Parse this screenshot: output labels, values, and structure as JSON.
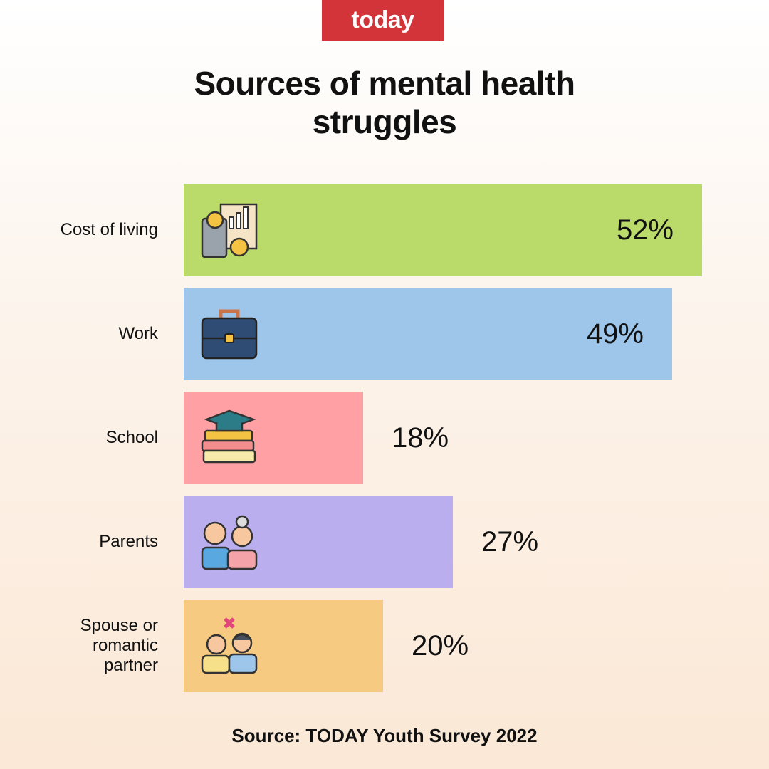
{
  "brand": "today",
  "chart_data": {
    "type": "bar",
    "orientation": "horizontal",
    "title": "Sources of mental health struggles",
    "categories": [
      "Cost of living",
      "Work",
      "School",
      "Parents",
      "Spouse or romantic partner"
    ],
    "values": [
      52,
      49,
      18,
      27,
      20
    ],
    "value_labels": [
      "52%",
      "49%",
      "18%",
      "27%",
      "20%"
    ],
    "colors": [
      "#badb6a",
      "#9ec6eb",
      "#ffa0a4",
      "#bbaeee",
      "#f6ca80"
    ],
    "source": "Source: TODAY Youth Survey 2022"
  }
}
